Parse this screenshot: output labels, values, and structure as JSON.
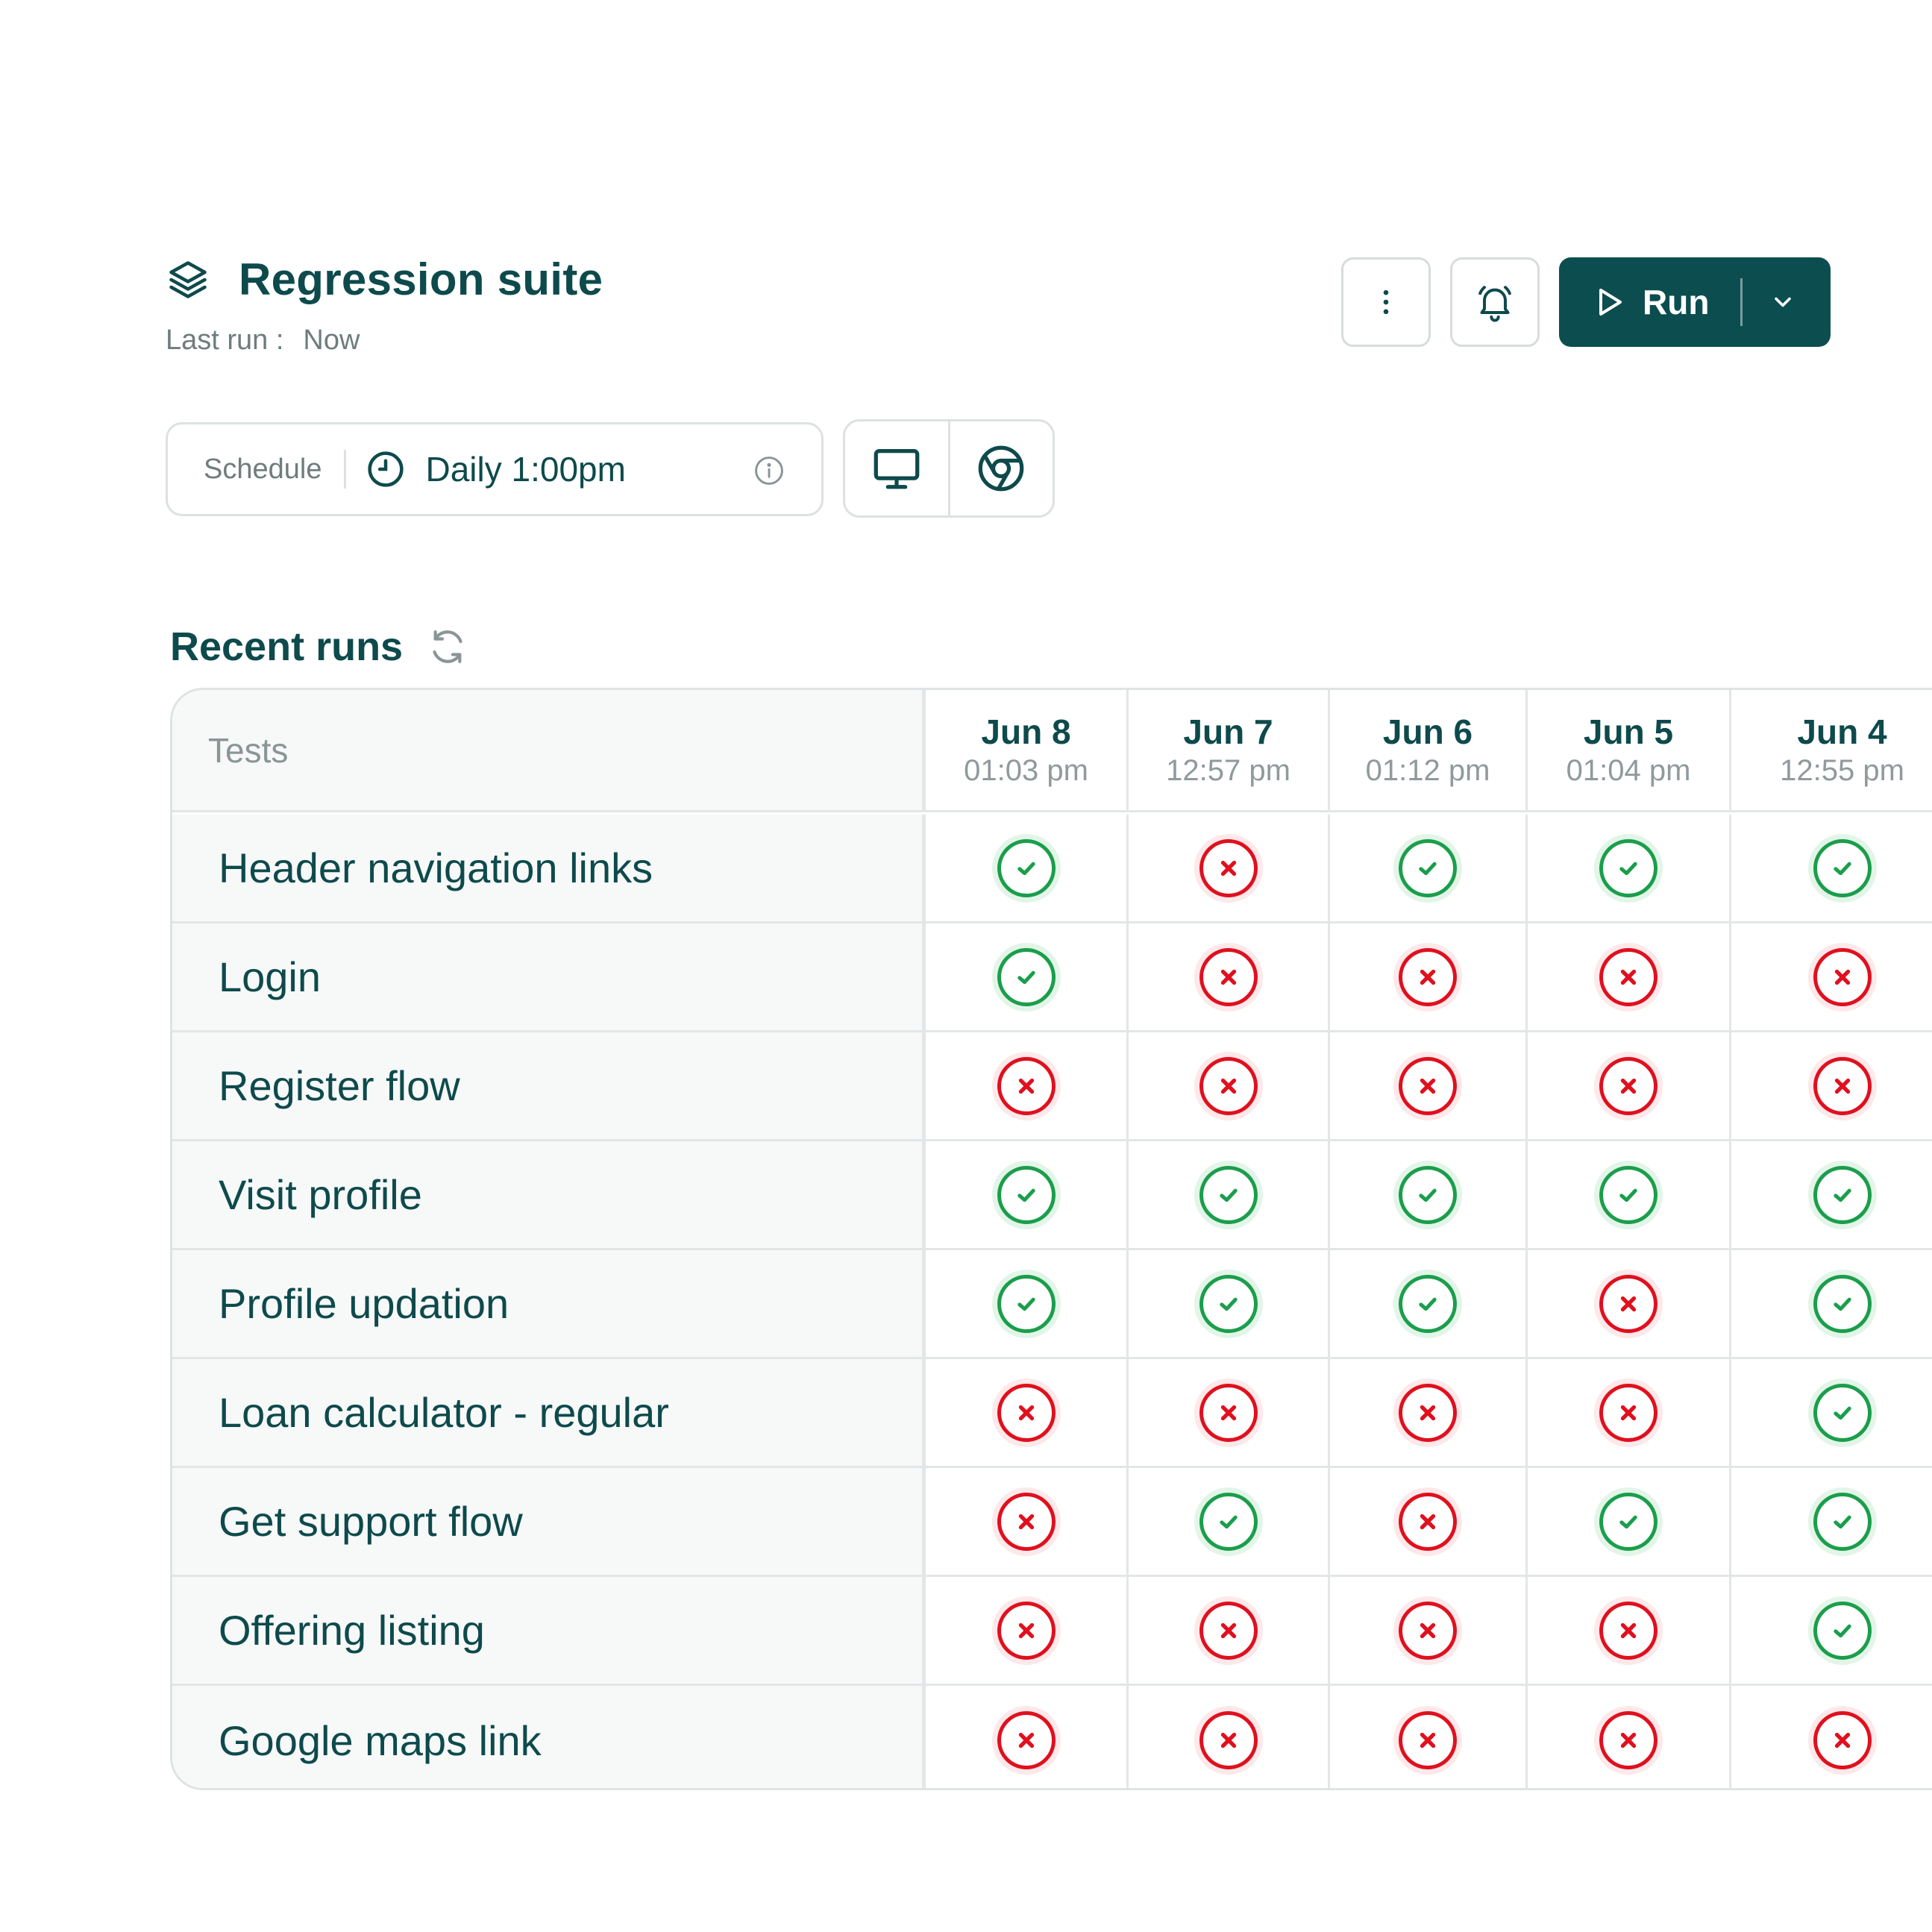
{
  "suite": {
    "title": "Regression suite",
    "icon": "layers-icon",
    "last_run_label": "Last run :",
    "last_run_value": "Now"
  },
  "actions": {
    "more_icon": "more-vertical-icon",
    "alert_icon": "bell-ring-icon",
    "run_label": "Run"
  },
  "schedule": {
    "label": "Schedule",
    "value": "Daily 1:00pm"
  },
  "environments": [
    "desktop-icon",
    "chrome-icon"
  ],
  "recent_runs": {
    "title": "Recent runs",
    "tests_header": "Tests",
    "runs": [
      {
        "date": "Jun 8",
        "time": "01:03 pm"
      },
      {
        "date": "Jun 7",
        "time": "12:57 pm"
      },
      {
        "date": "Jun 6",
        "time": "01:12 pm"
      },
      {
        "date": "Jun 5",
        "time": "01:04 pm"
      },
      {
        "date": "Jun 4",
        "time": "12:55 pm"
      }
    ],
    "tests": [
      {
        "name": "Header navigation links",
        "results": [
          "pass",
          "fail",
          "pass",
          "pass",
          "pass"
        ]
      },
      {
        "name": "Login",
        "results": [
          "pass",
          "fail",
          "fail",
          "fail",
          "fail"
        ]
      },
      {
        "name": "Register flow",
        "results": [
          "fail",
          "fail",
          "fail",
          "fail",
          "fail"
        ]
      },
      {
        "name": "Visit profile",
        "results": [
          "pass",
          "pass",
          "pass",
          "pass",
          "pass"
        ]
      },
      {
        "name": "Profile updation",
        "results": [
          "pass",
          "pass",
          "pass",
          "fail",
          "pass"
        ]
      },
      {
        "name": "Loan calculator - regular",
        "results": [
          "fail",
          "fail",
          "fail",
          "fail",
          "pass"
        ]
      },
      {
        "name": "Get support flow",
        "results": [
          "fail",
          "pass",
          "fail",
          "pass",
          "pass"
        ]
      },
      {
        "name": "Offering listing",
        "results": [
          "fail",
          "fail",
          "fail",
          "fail",
          "pass"
        ]
      },
      {
        "name": "Google maps link",
        "results": [
          "fail",
          "fail",
          "fail",
          "fail",
          "fail"
        ]
      }
    ]
  },
  "colors": {
    "primary": "#0c4e50",
    "text": "#0e4a4c",
    "pass": "#1b9e4b",
    "fail": "#e0101e"
  }
}
